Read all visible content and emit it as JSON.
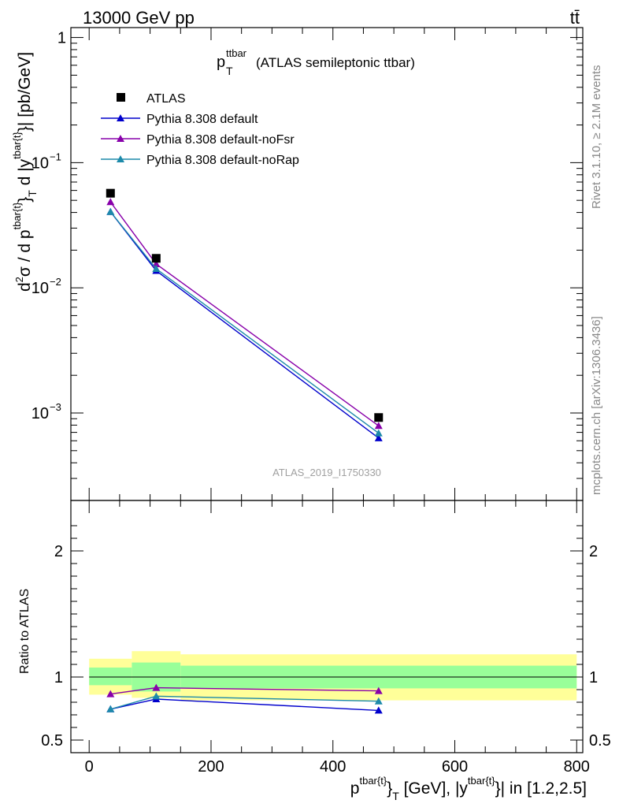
{
  "header": {
    "left": "13000 GeV pp",
    "right": "tt̄"
  },
  "side_labels": {
    "rivet": "Rivet 3.1.10, ≥ 2.1M events",
    "mcplots": "mcplots.cern.ch [arXiv:1306.3436]"
  },
  "watermark": "ATLAS_2019_I1750330",
  "chart_data": [
    {
      "type": "line",
      "panel": "main",
      "title_main": "p",
      "title_sup": "ttbar",
      "title_sub": "T",
      "title_rest": "(ATLAS semileptonic ttbar)",
      "ylabel": "d²σ / d p^{tbar{t}}_T d |y^{tbar{t}}| [pb/GeV]",
      "yscale": "log",
      "ylim": [
        0.0002,
        1.2
      ],
      "xlim": [
        -30,
        810
      ],
      "yticks": [
        {
          "value": 0.001,
          "base": "10",
          "exp": "−3"
        },
        {
          "value": 0.01,
          "base": "10",
          "exp": "−2"
        },
        {
          "value": 0.1,
          "base": "10",
          "exp": "−1"
        },
        {
          "value": 1,
          "label": "1"
        }
      ],
      "legend_position": "top-left",
      "data": {
        "name": "ATLAS",
        "color": "#000000",
        "x": [
          35,
          110,
          475
        ],
        "y": [
          0.057,
          0.0172,
          0.00092
        ]
      },
      "series": [
        {
          "name": "Pythia 8.308 default",
          "color": "#0000cc",
          "x": [
            35,
            110,
            475
          ],
          "y": [
            0.0405,
            0.0137,
            0.00063
          ]
        },
        {
          "name": "Pythia 8.308 default-noFsr",
          "color": "#8800aa",
          "x": [
            35,
            110,
            475
          ],
          "y": [
            0.0485,
            0.0155,
            0.00079
          ]
        },
        {
          "name": "Pythia 8.308 default-noRap",
          "color": "#1d8aaa",
          "x": [
            35,
            110,
            475
          ],
          "y": [
            0.0405,
            0.0142,
            0.00069
          ]
        }
      ]
    },
    {
      "type": "line",
      "panel": "ratio",
      "ylabel": "Ratio to ATLAS",
      "xlabel": "p^{tbar{t}}_T [GeV], |y^{tbar{t}}| in [1.2,2.5]",
      "xlim": [
        -30,
        810
      ],
      "ylim": [
        0.4,
        2.4
      ],
      "xticks": [
        0,
        200,
        400,
        600,
        800
      ],
      "yticks": [
        0.5,
        1,
        2
      ],
      "bands": [
        {
          "x": [
            0,
            70
          ],
          "stat": [
            0.935,
            1.075
          ],
          "total": [
            0.86,
            1.145
          ]
        },
        {
          "x": [
            70,
            150
          ],
          "stat": [
            0.885,
            1.115
          ],
          "total": [
            0.835,
            1.205
          ]
        },
        {
          "x": [
            150,
            800
          ],
          "stat": [
            0.91,
            1.09
          ],
          "total": [
            0.815,
            1.18
          ]
        }
      ],
      "band_colors": {
        "stat": "#99ff99",
        "total": "#ffff99"
      },
      "series": [
        {
          "name": "Pythia 8.308 default",
          "color": "#0000cc",
          "x": [
            35,
            110,
            475
          ],
          "y": [
            0.745,
            0.825,
            0.735
          ]
        },
        {
          "name": "Pythia 8.308 default-noFsr",
          "color": "#8800aa",
          "x": [
            35,
            110,
            475
          ],
          "y": [
            0.865,
            0.915,
            0.89
          ]
        },
        {
          "name": "Pythia 8.308 default-noRap",
          "color": "#1d8aaa",
          "x": [
            35,
            110,
            475
          ],
          "y": [
            0.745,
            0.848,
            0.808
          ]
        }
      ]
    }
  ]
}
